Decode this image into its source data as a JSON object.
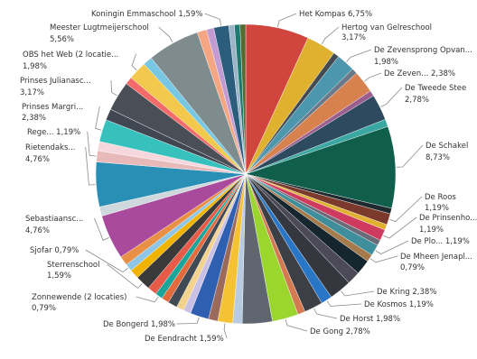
{
  "chart_data": {
    "type": "pie",
    "title": "",
    "legend": "none",
    "labels_visible": [
      "Het Kompas",
      "Hertog van Gelreschool",
      "De Zevensprong Opvan...",
      "De Zeven...",
      "De Tweede Stee",
      "De Schakel",
      "De Roos",
      "De Prinsenho...",
      "De Plo...",
      "De Mheen Jenapl...",
      "De Kring",
      "De Kosmos",
      "De Horst",
      "De Gong",
      "De Eendracht",
      "De Bongerd",
      "Zonnewende (2 locaties)",
      "Sterrenschool",
      "Sjofar",
      "Sebastiaansc...",
      "Rietendaks...",
      "Rege...",
      "Prinses Margri...",
      "Prinses Julianasc...",
      "OBS het Web (2 locatie...",
      "Meester Lugtmeijerschool",
      "Koningin Emmaschool"
    ],
    "slices": [
      {
        "label": "Het Kompas",
        "value": 6.75,
        "value_text": "6,75%",
        "color": "#d0463f"
      },
      {
        "label": "Hertog van Gelreschool",
        "value": 3.17,
        "value_text": "3,17%",
        "color": "#e0b12f"
      },
      {
        "label": "",
        "value": 0.6,
        "value_text": "",
        "color": "#444a52"
      },
      {
        "label": "De Zevensprong Opvan...",
        "value": 1.98,
        "value_text": "1,98%",
        "color": "#4d97ae"
      },
      {
        "label": "",
        "value": 0.6,
        "value_text": "",
        "color": "#6a7888"
      },
      {
        "label": "De Zeven...",
        "value": 2.38,
        "value_text": "2,38%",
        "color": "#d7814e"
      },
      {
        "label": "",
        "value": 0.6,
        "value_text": "",
        "color": "#9a5e8f"
      },
      {
        "label": "De Tweede Stee",
        "value": 2.78,
        "value_text": "2,78%",
        "color": "#2d4a5e"
      },
      {
        "label": "",
        "value": 0.8,
        "value_text": "",
        "color": "#3aa7a0"
      },
      {
        "label": "De Schakel",
        "value": 8.73,
        "value_text": "8,73%",
        "color": "#0f5f4c"
      },
      {
        "label": "",
        "value": 0.6,
        "value_text": "",
        "color": "#1f2a30"
      },
      {
        "label": "De Roos",
        "value": 1.19,
        "value_text": "1,19%",
        "color": "#7c3a2d"
      },
      {
        "label": "",
        "value": 0.6,
        "value_text": "",
        "color": "#e0b12f"
      },
      {
        "label": "De Prinsenho...",
        "value": 1.19,
        "value_text": "1,19%",
        "color": "#cf3b5e"
      },
      {
        "label": "",
        "value": 0.6,
        "value_text": "",
        "color": "#6a6a78"
      },
      {
        "label": "De Plo...",
        "value": 1.19,
        "value_text": "1,19%",
        "color": "#3e8e9c"
      },
      {
        "label": "De Mheen Jenapl...",
        "value": 0.79,
        "value_text": "0,79%",
        "color": "#a67a4a"
      },
      {
        "label": "",
        "value": 1.6,
        "value_text": "",
        "color": "#16262f"
      },
      {
        "label": "",
        "value": 1.4,
        "value_text": "",
        "color": "#4c4a57"
      },
      {
        "label": "De Kring",
        "value": 2.38,
        "value_text": "2,38%",
        "color": "#34383e"
      },
      {
        "label": "De Kosmos",
        "value": 1.19,
        "value_text": "1,19%",
        "color": "#2a76c6"
      },
      {
        "label": "De Horst",
        "value": 1.98,
        "value_text": "1,98%",
        "color": "#3c3f45"
      },
      {
        "label": "",
        "value": 0.8,
        "value_text": "",
        "color": "#d47a52"
      },
      {
        "label": "De Gong",
        "value": 2.78,
        "value_text": "2,78%",
        "color": "#9ad62e"
      },
      {
        "label": "",
        "value": 3.2,
        "value_text": "",
        "color": "#5f6670"
      },
      {
        "label": "",
        "value": 1.0,
        "value_text": "",
        "color": "#b8cbe0"
      },
      {
        "label": "De Eendracht",
        "value": 1.59,
        "value_text": "1,59%",
        "color": "#f4c233"
      },
      {
        "label": "",
        "value": 1.0,
        "value_text": "",
        "color": "#9b6a5a"
      },
      {
        "label": "De Bongerd",
        "value": 1.98,
        "value_text": "1,98%",
        "color": "#2f5fb0"
      },
      {
        "label": "",
        "value": 0.8,
        "value_text": "",
        "color": "#c9c0e6"
      },
      {
        "label": "",
        "value": 0.8,
        "value_text": "",
        "color": "#f2d28c"
      },
      {
        "label": "",
        "value": 1.0,
        "value_text": "",
        "color": "#3f4a55"
      },
      {
        "label": "",
        "value": 0.8,
        "value_text": "",
        "color": "#e36a3d"
      },
      {
        "label": "Zonnewende (2 locaties)",
        "value": 0.79,
        "value_text": "0,79%",
        "color": "#1aa59a"
      },
      {
        "label": "",
        "value": 1.0,
        "value_text": "",
        "color": "#e85a48"
      },
      {
        "label": "Sterrenschool",
        "value": 1.59,
        "value_text": "1,59%",
        "color": "#3a3a3a"
      },
      {
        "label": "",
        "value": 1.0,
        "value_text": "",
        "color": "#f0b400"
      },
      {
        "label": "Sjofar",
        "value": 0.79,
        "value_text": "0,79%",
        "color": "#8fc6e8"
      },
      {
        "label": "",
        "value": 1.0,
        "value_text": "",
        "color": "#e98f46"
      },
      {
        "label": "Sebastiaansc...",
        "value": 4.76,
        "value_text": "4,76%",
        "color": "#a94a9d"
      },
      {
        "label": "",
        "value": 1.0,
        "value_text": "",
        "color": "#cfd8dc"
      },
      {
        "label": "Rietendaks...",
        "value": 4.76,
        "value_text": "4,76%",
        "color": "#2a8fb5"
      },
      {
        "label": "Rege...",
        "value": 1.19,
        "value_text": "1,19%",
        "color": "#e7b9b9"
      },
      {
        "label": "",
        "value": 1.0,
        "value_text": "",
        "color": "#f6d7dd"
      },
      {
        "label": "Prinses Margri...",
        "value": 2.38,
        "value_text": "2,38%",
        "color": "#37c1bd"
      },
      {
        "label": "",
        "value": 1.2,
        "value_text": "",
        "color": "#404652"
      },
      {
        "label": "Prinses Julianasc...",
        "value": 3.17,
        "value_text": "3,17%",
        "color": "#4a4f57"
      },
      {
        "label": "",
        "value": 0.8,
        "value_text": "",
        "color": "#f26a6a"
      },
      {
        "label": "OBS het Web (2 locatie...",
        "value": 1.98,
        "value_text": "1,98%",
        "color": "#f2c94c"
      },
      {
        "label": "",
        "value": 1.0,
        "value_text": "",
        "color": "#78c7e3"
      },
      {
        "label": "Meester Lugtmeijerschool",
        "value": 5.56,
        "value_text": "5,56%",
        "color": "#7f8c8d"
      },
      {
        "label": "",
        "value": 1.0,
        "value_text": "",
        "color": "#f4a582"
      },
      {
        "label": "",
        "value": 0.8,
        "value_text": "",
        "color": "#c39bd3"
      },
      {
        "label": "Koningin Emmaschool",
        "value": 1.59,
        "value_text": "1,59%",
        "color": "#2b5d7c"
      },
      {
        "label": "",
        "value": 0.6,
        "value_text": "",
        "color": "#9bb4c8"
      },
      {
        "label": "",
        "value": 0.6,
        "value_text": "",
        "color": "#1c7a6e"
      },
      {
        "label": "",
        "value": 0.6,
        "value_text": "",
        "color": "#556b2f"
      }
    ]
  }
}
